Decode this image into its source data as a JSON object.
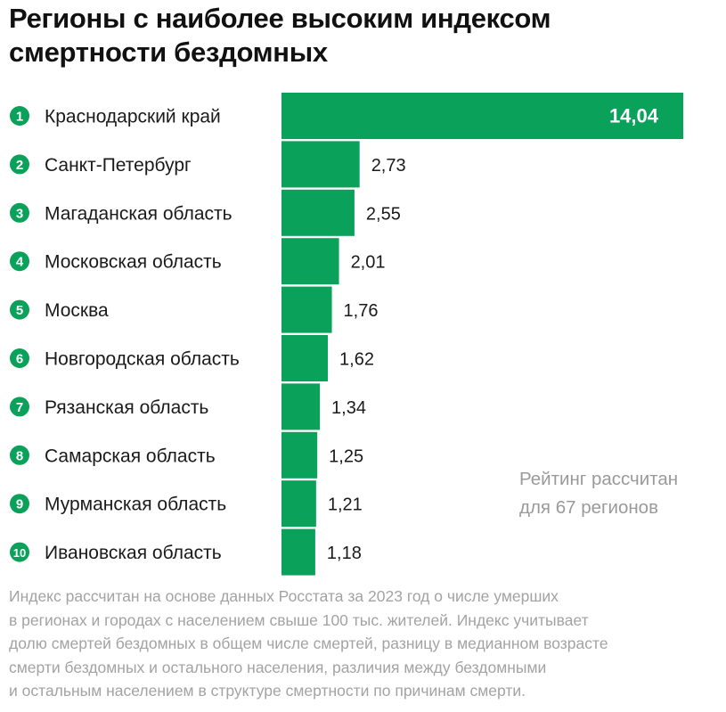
{
  "title_lines": [
    "Регионы с наиболее высоким индексом",
    "смертности бездомных"
  ],
  "note_lines": [
    "Рейтинг рассчитан",
    "для 67 регионов"
  ],
  "footnote_lines": [
    "Индекс рассчитан на основе данных Росстата за 2023 год о числе умерших",
    "в регионах и городах с населением свыше 100 тыс. жителей. Индекс учитывает",
    "долю смертей бездомных в общем числе смертей, разницу в медианном возрасте",
    "смерти бездомных и остального населения, различия между бездомными",
    "и остальным населением в структуре смертности по причинам смерти."
  ],
  "colors": {
    "bar": "#0aa15a",
    "rank_badge": "#0aa15a",
    "rank_text": "#ffffff",
    "label_text": "#1a1a1a",
    "value_text": "#1a1a1a",
    "value_inside_text": "#ffffff",
    "note_text": "#9a9a9a",
    "footnote_text": "#a3a3a3"
  },
  "chart_data": {
    "type": "bar",
    "orientation": "horizontal",
    "title": "Регионы с наиболее высоким индексом смертности бездомных",
    "ranks": [
      "1",
      "2",
      "3",
      "4",
      "5",
      "6",
      "7",
      "8",
      "9",
      "10"
    ],
    "categories": [
      "Краснодарский край",
      "Санкт-Петербург",
      "Магаданская область",
      "Московская область",
      "Москва",
      "Новгородская область",
      "Рязанская область",
      "Самарская область",
      "Мурманская область",
      "Ивановская область"
    ],
    "values": [
      14.04,
      2.73,
      2.55,
      2.01,
      1.76,
      1.62,
      1.34,
      1.25,
      1.21,
      1.18
    ],
    "value_labels": [
      "14,04",
      "2,73",
      "2,55",
      "2,01",
      "1,76",
      "1,62",
      "1,34",
      "1,25",
      "1,21",
      "1,18"
    ],
    "xlim": [
      0,
      14.04
    ],
    "grid": false,
    "legend": "none"
  }
}
